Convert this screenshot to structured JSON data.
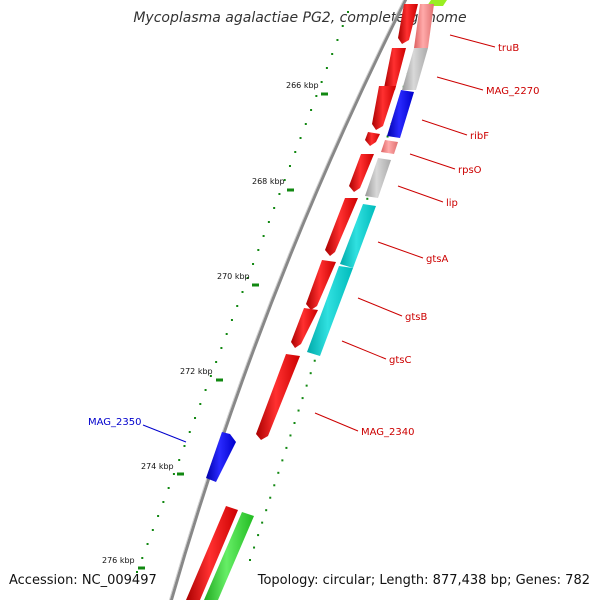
{
  "title": "Mycoplasma agalactiae PG2, complete genome",
  "accession": "Accession: NC_009497",
  "summary": "Topology: circular; Length: 877,438 bp; Genes: 782",
  "colors": {
    "background": "#ffffff",
    "backbone": "#808080",
    "tick": "#118811",
    "forward_label": "#cc0000",
    "reverse_label": "#0000cc",
    "red": "#ee1111",
    "blue": "#1111dd",
    "cyan": "#11cccc",
    "grey": "#bbbbbb",
    "pink": "#ee8080",
    "green": "#33cc33",
    "yellowgreen": "#99ee22"
  },
  "scale_labels": [
    "266 kbp",
    "268 kbp",
    "270 kbp",
    "272 kbp",
    "274 kbp",
    "276 kbp"
  ],
  "genes": [
    {
      "name": "truB",
      "color": "forward_label"
    },
    {
      "name": "MAG_2270",
      "color": "forward_label"
    },
    {
      "name": "ribF",
      "color": "forward_label"
    },
    {
      "name": "rpsO",
      "color": "forward_label"
    },
    {
      "name": "lip",
      "color": "forward_label"
    },
    {
      "name": "gtsA",
      "color": "forward_label"
    },
    {
      "name": "gtsB",
      "color": "forward_label"
    },
    {
      "name": "gtsC",
      "color": "forward_label"
    },
    {
      "name": "MAG_2340",
      "color": "forward_label"
    },
    {
      "name": "MAG_2350",
      "color": "reverse_label"
    }
  ]
}
